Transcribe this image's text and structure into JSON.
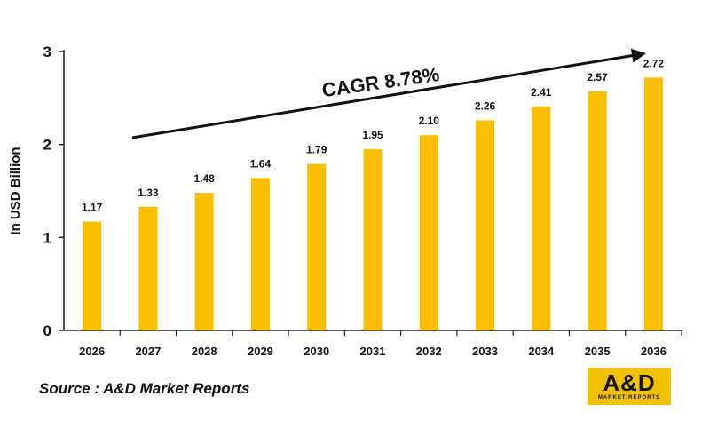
{
  "chart_data": {
    "type": "bar",
    "categories": [
      "2026",
      "2027",
      "2028",
      "2029",
      "2030",
      "2031",
      "2032",
      "2033",
      "2034",
      "2035",
      "2036"
    ],
    "values": [
      1.17,
      1.33,
      1.48,
      1.64,
      1.79,
      1.95,
      2.1,
      2.26,
      2.41,
      2.57,
      2.72
    ],
    "value_labels": [
      "1.17",
      "1.33",
      "1.48",
      "1.64",
      "1.79",
      "1.95",
      "2.10",
      "2.26",
      "2.41",
      "2.57",
      "2.72"
    ],
    "ylabel": "In USD Billion",
    "xlabel": "",
    "ylim": [
      0,
      3
    ],
    "yticks": [
      "0",
      "1",
      "2",
      "3"
    ],
    "grid": false,
    "bar_color": "#fcbf00",
    "annotation": "CAGR 8.78%"
  },
  "source_note": "Source : A&D Market Reports",
  "logo": {
    "main": "A&D",
    "sub": "MARKET REPORTS",
    "color": "#f2c200"
  }
}
